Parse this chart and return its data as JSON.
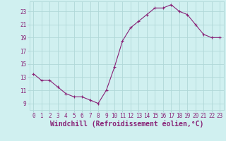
{
  "x": [
    0,
    1,
    2,
    3,
    4,
    5,
    6,
    7,
    8,
    9,
    10,
    11,
    12,
    13,
    14,
    15,
    16,
    17,
    18,
    19,
    20,
    21,
    22,
    23
  ],
  "y": [
    13.5,
    12.5,
    12.5,
    11.5,
    10.5,
    10.0,
    10.0,
    9.5,
    9.0,
    11.0,
    14.5,
    18.5,
    20.5,
    21.5,
    22.5,
    23.5,
    23.5,
    24.0,
    23.0,
    22.5,
    21.0,
    19.5,
    19.0,
    19.0
  ],
  "line_color": "#882277",
  "marker_color": "#882277",
  "bg_color": "#d0f0f0",
  "grid_color": "#b0d8d8",
  "xlabel": "Windchill (Refroidissement éolien,°C)",
  "ylabel_ticks": [
    9,
    11,
    13,
    15,
    17,
    19,
    21,
    23
  ],
  "ylim": [
    8.0,
    24.5
  ],
  "xlim": [
    -0.5,
    23.5
  ],
  "tick_label_color": "#882277",
  "xlabel_color": "#882277",
  "tick_fontsize": 5.5,
  "xlabel_fontsize": 7.0
}
